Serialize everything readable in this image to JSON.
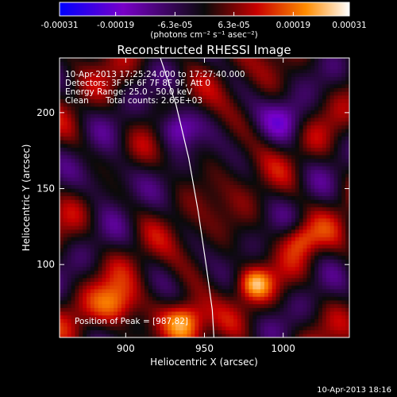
{
  "chart_data": {
    "type": "heatmap",
    "title": "Reconstructed RHESSI Image",
    "xlabel": "Heliocentric X (arcsec)",
    "ylabel": "Heliocentric Y (arcsec)",
    "xlim": [
      858,
      1042
    ],
    "ylim": [
      52,
      236
    ],
    "x_ticks": [
      900,
      950,
      1000
    ],
    "y_ticks": [
      100,
      150,
      200
    ],
    "colorbar": {
      "range": [
        -0.00031,
        0.00031
      ],
      "tick_values": [
        -0.00031,
        -0.00019,
        -6.3e-05,
        6.3e-05,
        0.00019,
        0.00031
      ],
      "tick_labels": [
        "-0.00031",
        "-0.00019",
        "-6.3e-05",
        "6.3e-05",
        "0.00019",
        "0.00031"
      ],
      "unit_label": "(photons cm⁻² s⁻¹ asec⁻²)",
      "colors": [
        "#0000ff",
        "#7800c8",
        "#0a0a0a",
        "#c80000",
        "#ff8c00",
        "#ffffff"
      ]
    },
    "annotations": {
      "time_range": "10-Apr-2013 17:25:24.000 to 17:27:40.000",
      "detectors": "Detectors: 3F 5F 6F 7F 8F 9F, Att 0",
      "energy": "Energy Range: 25.0 - 50.0 keV",
      "clean_label": "Clean",
      "total_counts": "Total counts: 2.65E+03",
      "peak": "Position of Peak = [987,82]"
    },
    "limb_curve": [
      [
        922,
        236
      ],
      [
        932,
        205
      ],
      [
        940,
        170
      ],
      [
        946,
        135
      ],
      [
        951,
        100
      ],
      [
        955,
        70
      ],
      [
        956,
        52
      ]
    ],
    "footer_timestamp": "10-Apr-2013 18:16"
  }
}
